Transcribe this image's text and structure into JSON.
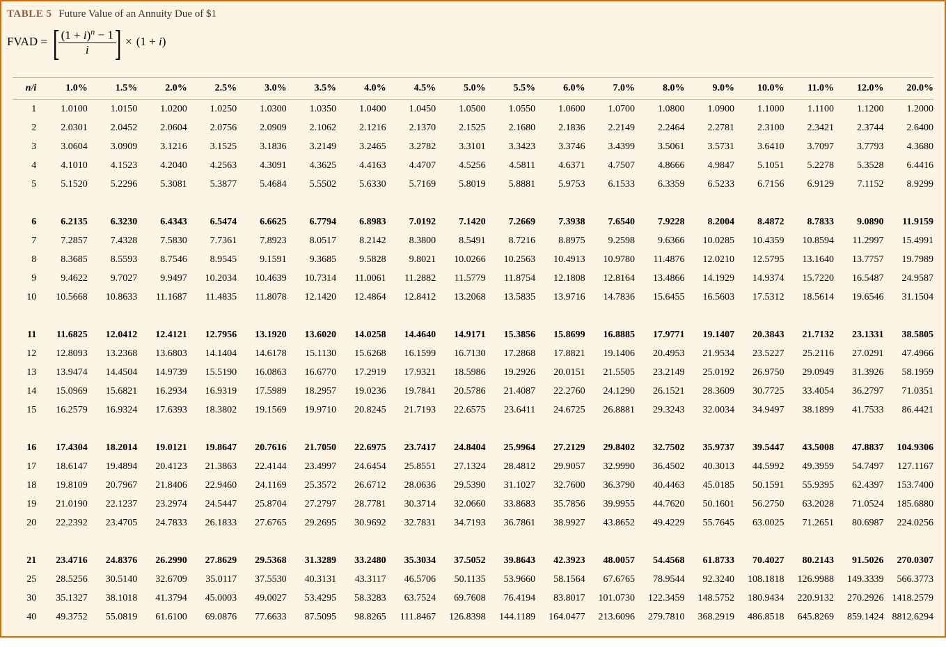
{
  "header": {
    "table_label": "TABLE 5",
    "table_title": "Future Value of an Annuity Due of $1"
  },
  "formula": {
    "lhs": "FVAD",
    "num_prefix": "(1 + ",
    "num_var": "i",
    "num_suffix": ")",
    "num_exp": "n",
    "num_tail": " − 1",
    "den": "i",
    "rest_prefix": "(1 + ",
    "rest_var": "i",
    "rest_suffix": ")"
  },
  "table": {
    "corner": "n/i",
    "columns": [
      "1.0%",
      "1.5%",
      "2.0%",
      "2.5%",
      "3.0%",
      "3.5%",
      "4.0%",
      "4.5%",
      "5.0%",
      "5.5%",
      "6.0%",
      "7.0%",
      "8.0%",
      "9.0%",
      "10.0%",
      "11.0%",
      "12.0%",
      "20.0%"
    ],
    "groups": [
      {
        "bold_first": false,
        "rows": [
          {
            "n": "1",
            "v": [
              "1.0100",
              "1.0150",
              "1.0200",
              "1.0250",
              "1.0300",
              "1.0350",
              "1.0400",
              "1.0450",
              "1.0500",
              "1.0550",
              "1.0600",
              "1.0700",
              "1.0800",
              "1.0900",
              "1.1000",
              "1.1100",
              "1.1200",
              "1.2000"
            ]
          },
          {
            "n": "2",
            "v": [
              "2.0301",
              "2.0452",
              "2.0604",
              "2.0756",
              "2.0909",
              "2.1062",
              "2.1216",
              "2.1370",
              "2.1525",
              "2.1680",
              "2.1836",
              "2.2149",
              "2.2464",
              "2.2781",
              "2.3100",
              "2.3421",
              "2.3744",
              "2.6400"
            ]
          },
          {
            "n": "3",
            "v": [
              "3.0604",
              "3.0909",
              "3.1216",
              "3.1525",
              "3.1836",
              "3.2149",
              "3.2465",
              "3.2782",
              "3.3101",
              "3.3423",
              "3.3746",
              "3.4399",
              "3.5061",
              "3.5731",
              "3.6410",
              "3.7097",
              "3.7793",
              "4.3680"
            ]
          },
          {
            "n": "4",
            "v": [
              "4.1010",
              "4.1523",
              "4.2040",
              "4.2563",
              "4.3091",
              "4.3625",
              "4.4163",
              "4.4707",
              "4.5256",
              "4.5811",
              "4.6371",
              "4.7507",
              "4.8666",
              "4.9847",
              "5.1051",
              "5.2278",
              "5.3528",
              "6.4416"
            ]
          },
          {
            "n": "5",
            "v": [
              "5.1520",
              "5.2296",
              "5.3081",
              "5.3877",
              "5.4684",
              "5.5502",
              "5.6330",
              "5.7169",
              "5.8019",
              "5.8881",
              "5.9753",
              "6.1533",
              "6.3359",
              "6.5233",
              "6.7156",
              "6.9129",
              "7.1152",
              "8.9299"
            ]
          }
        ]
      },
      {
        "bold_first": true,
        "rows": [
          {
            "n": "6",
            "v": [
              "6.2135",
              "6.3230",
              "6.4343",
              "6.5474",
              "6.6625",
              "6.7794",
              "6.8983",
              "7.0192",
              "7.1420",
              "7.2669",
              "7.3938",
              "7.6540",
              "7.9228",
              "8.2004",
              "8.4872",
              "8.7833",
              "9.0890",
              "11.9159"
            ]
          },
          {
            "n": "7",
            "v": [
              "7.2857",
              "7.4328",
              "7.5830",
              "7.7361",
              "7.8923",
              "8.0517",
              "8.2142",
              "8.3800",
              "8.5491",
              "8.7216",
              "8.8975",
              "9.2598",
              "9.6366",
              "10.0285",
              "10.4359",
              "10.8594",
              "11.2997",
              "15.4991"
            ]
          },
          {
            "n": "8",
            "v": [
              "8.3685",
              "8.5593",
              "8.7546",
              "8.9545",
              "9.1591",
              "9.3685",
              "9.5828",
              "9.8021",
              "10.0266",
              "10.2563",
              "10.4913",
              "10.9780",
              "11.4876",
              "12.0210",
              "12.5795",
              "13.1640",
              "13.7757",
              "19.7989"
            ]
          },
          {
            "n": "9",
            "v": [
              "9.4622",
              "9.7027",
              "9.9497",
              "10.2034",
              "10.4639",
              "10.7314",
              "11.0061",
              "11.2882",
              "11.5779",
              "11.8754",
              "12.1808",
              "12.8164",
              "13.4866",
              "14.1929",
              "14.9374",
              "15.7220",
              "16.5487",
              "24.9587"
            ]
          },
          {
            "n": "10",
            "v": [
              "10.5668",
              "10.8633",
              "11.1687",
              "11.4835",
              "11.8078",
              "12.1420",
              "12.4864",
              "12.8412",
              "13.2068",
              "13.5835",
              "13.9716",
              "14.7836",
              "15.6455",
              "16.5603",
              "17.5312",
              "18.5614",
              "19.6546",
              "31.1504"
            ]
          }
        ]
      },
      {
        "bold_first": true,
        "rows": [
          {
            "n": "11",
            "v": [
              "11.6825",
              "12.0412",
              "12.4121",
              "12.7956",
              "13.1920",
              "13.6020",
              "14.0258",
              "14.4640",
              "14.9171",
              "15.3856",
              "15.8699",
              "16.8885",
              "17.9771",
              "19.1407",
              "20.3843",
              "21.7132",
              "23.1331",
              "38.5805"
            ]
          },
          {
            "n": "12",
            "v": [
              "12.8093",
              "13.2368",
              "13.6803",
              "14.1404",
              "14.6178",
              "15.1130",
              "15.6268",
              "16.1599",
              "16.7130",
              "17.2868",
              "17.8821",
              "19.1406",
              "20.4953",
              "21.9534",
              "23.5227",
              "25.2116",
              "27.0291",
              "47.4966"
            ]
          },
          {
            "n": "13",
            "v": [
              "13.9474",
              "14.4504",
              "14.9739",
              "15.5190",
              "16.0863",
              "16.6770",
              "17.2919",
              "17.9321",
              "18.5986",
              "19.2926",
              "20.0151",
              "21.5505",
              "23.2149",
              "25.0192",
              "26.9750",
              "29.0949",
              "31.3926",
              "58.1959"
            ]
          },
          {
            "n": "14",
            "v": [
              "15.0969",
              "15.6821",
              "16.2934",
              "16.9319",
              "17.5989",
              "18.2957",
              "19.0236",
              "19.7841",
              "20.5786",
              "21.4087",
              "22.2760",
              "24.1290",
              "26.1521",
              "28.3609",
              "30.7725",
              "33.4054",
              "36.2797",
              "71.0351"
            ]
          },
          {
            "n": "15",
            "v": [
              "16.2579",
              "16.9324",
              "17.6393",
              "18.3802",
              "19.1569",
              "19.9710",
              "20.8245",
              "21.7193",
              "22.6575",
              "23.6411",
              "24.6725",
              "26.8881",
              "29.3243",
              "32.0034",
              "34.9497",
              "38.1899",
              "41.7533",
              "86.4421"
            ]
          }
        ]
      },
      {
        "bold_first": true,
        "rows": [
          {
            "n": "16",
            "v": [
              "17.4304",
              "18.2014",
              "19.0121",
              "19.8647",
              "20.7616",
              "21.7050",
              "22.6975",
              "23.7417",
              "24.8404",
              "25.9964",
              "27.2129",
              "29.8402",
              "32.7502",
              "35.9737",
              "39.5447",
              "43.5008",
              "47.8837",
              "104.9306"
            ]
          },
          {
            "n": "17",
            "v": [
              "18.6147",
              "19.4894",
              "20.4123",
              "21.3863",
              "22.4144",
              "23.4997",
              "24.6454",
              "25.8551",
              "27.1324",
              "28.4812",
              "29.9057",
              "32.9990",
              "36.4502",
              "40.3013",
              "44.5992",
              "49.3959",
              "54.7497",
              "127.1167"
            ]
          },
          {
            "n": "18",
            "v": [
              "19.8109",
              "20.7967",
              "21.8406",
              "22.9460",
              "24.1169",
              "25.3572",
              "26.6712",
              "28.0636",
              "29.5390",
              "31.1027",
              "32.7600",
              "36.3790",
              "40.4463",
              "45.0185",
              "50.1591",
              "55.9395",
              "62.4397",
              "153.7400"
            ]
          },
          {
            "n": "19",
            "v": [
              "21.0190",
              "22.1237",
              "23.2974",
              "24.5447",
              "25.8704",
              "27.2797",
              "28.7781",
              "30.3714",
              "32.0660",
              "33.8683",
              "35.7856",
              "39.9955",
              "44.7620",
              "50.1601",
              "56.2750",
              "63.2028",
              "71.0524",
              "185.6880"
            ]
          },
          {
            "n": "20",
            "v": [
              "22.2392",
              "23.4705",
              "24.7833",
              "26.1833",
              "27.6765",
              "29.2695",
              "30.9692",
              "32.7831",
              "34.7193",
              "36.7861",
              "38.9927",
              "43.8652",
              "49.4229",
              "55.7645",
              "63.0025",
              "71.2651",
              "80.6987",
              "224.0256"
            ]
          }
        ]
      },
      {
        "bold_first": true,
        "rows": [
          {
            "n": "21",
            "v": [
              "23.4716",
              "24.8376",
              "26.2990",
              "27.8629",
              "29.5368",
              "31.3289",
              "33.2480",
              "35.3034",
              "37.5052",
              "39.8643",
              "42.3923",
              "48.0057",
              "54.4568",
              "61.8733",
              "70.4027",
              "80.2143",
              "91.5026",
              "270.0307"
            ]
          },
          {
            "n": "25",
            "v": [
              "28.5256",
              "30.5140",
              "32.6709",
              "35.0117",
              "37.5530",
              "40.3131",
              "43.3117",
              "46.5706",
              "50.1135",
              "53.9660",
              "58.1564",
              "67.6765",
              "78.9544",
              "92.3240",
              "108.1818",
              "126.9988",
              "149.3339",
              "566.3773"
            ]
          },
          {
            "n": "30",
            "v": [
              "35.1327",
              "38.1018",
              "41.3794",
              "45.0003",
              "49.0027",
              "53.4295",
              "58.3283",
              "63.7524",
              "69.7608",
              "76.4194",
              "83.8017",
              "101.0730",
              "122.3459",
              "148.5752",
              "180.9434",
              "220.9132",
              "270.2926",
              "1418.2579"
            ]
          },
          {
            "n": "40",
            "v": [
              "49.3752",
              "55.0819",
              "61.6100",
              "69.0876",
              "77.6633",
              "87.5095",
              "98.8265",
              "111.8467",
              "126.8398",
              "144.1189",
              "164.0477",
              "213.6096",
              "279.7810",
              "368.2919",
              "486.8518",
              "645.8269",
              "859.1424",
              "8812.6294"
            ]
          }
        ]
      }
    ]
  },
  "style": {
    "background_color": "#fdf4e3",
    "border_color": "#d96c00",
    "rule_color": "#bfae8a",
    "label_color": "#8a5a44",
    "font_family": "Georgia, 'Times New Roman', serif",
    "base_font_size_pt": 11
  }
}
